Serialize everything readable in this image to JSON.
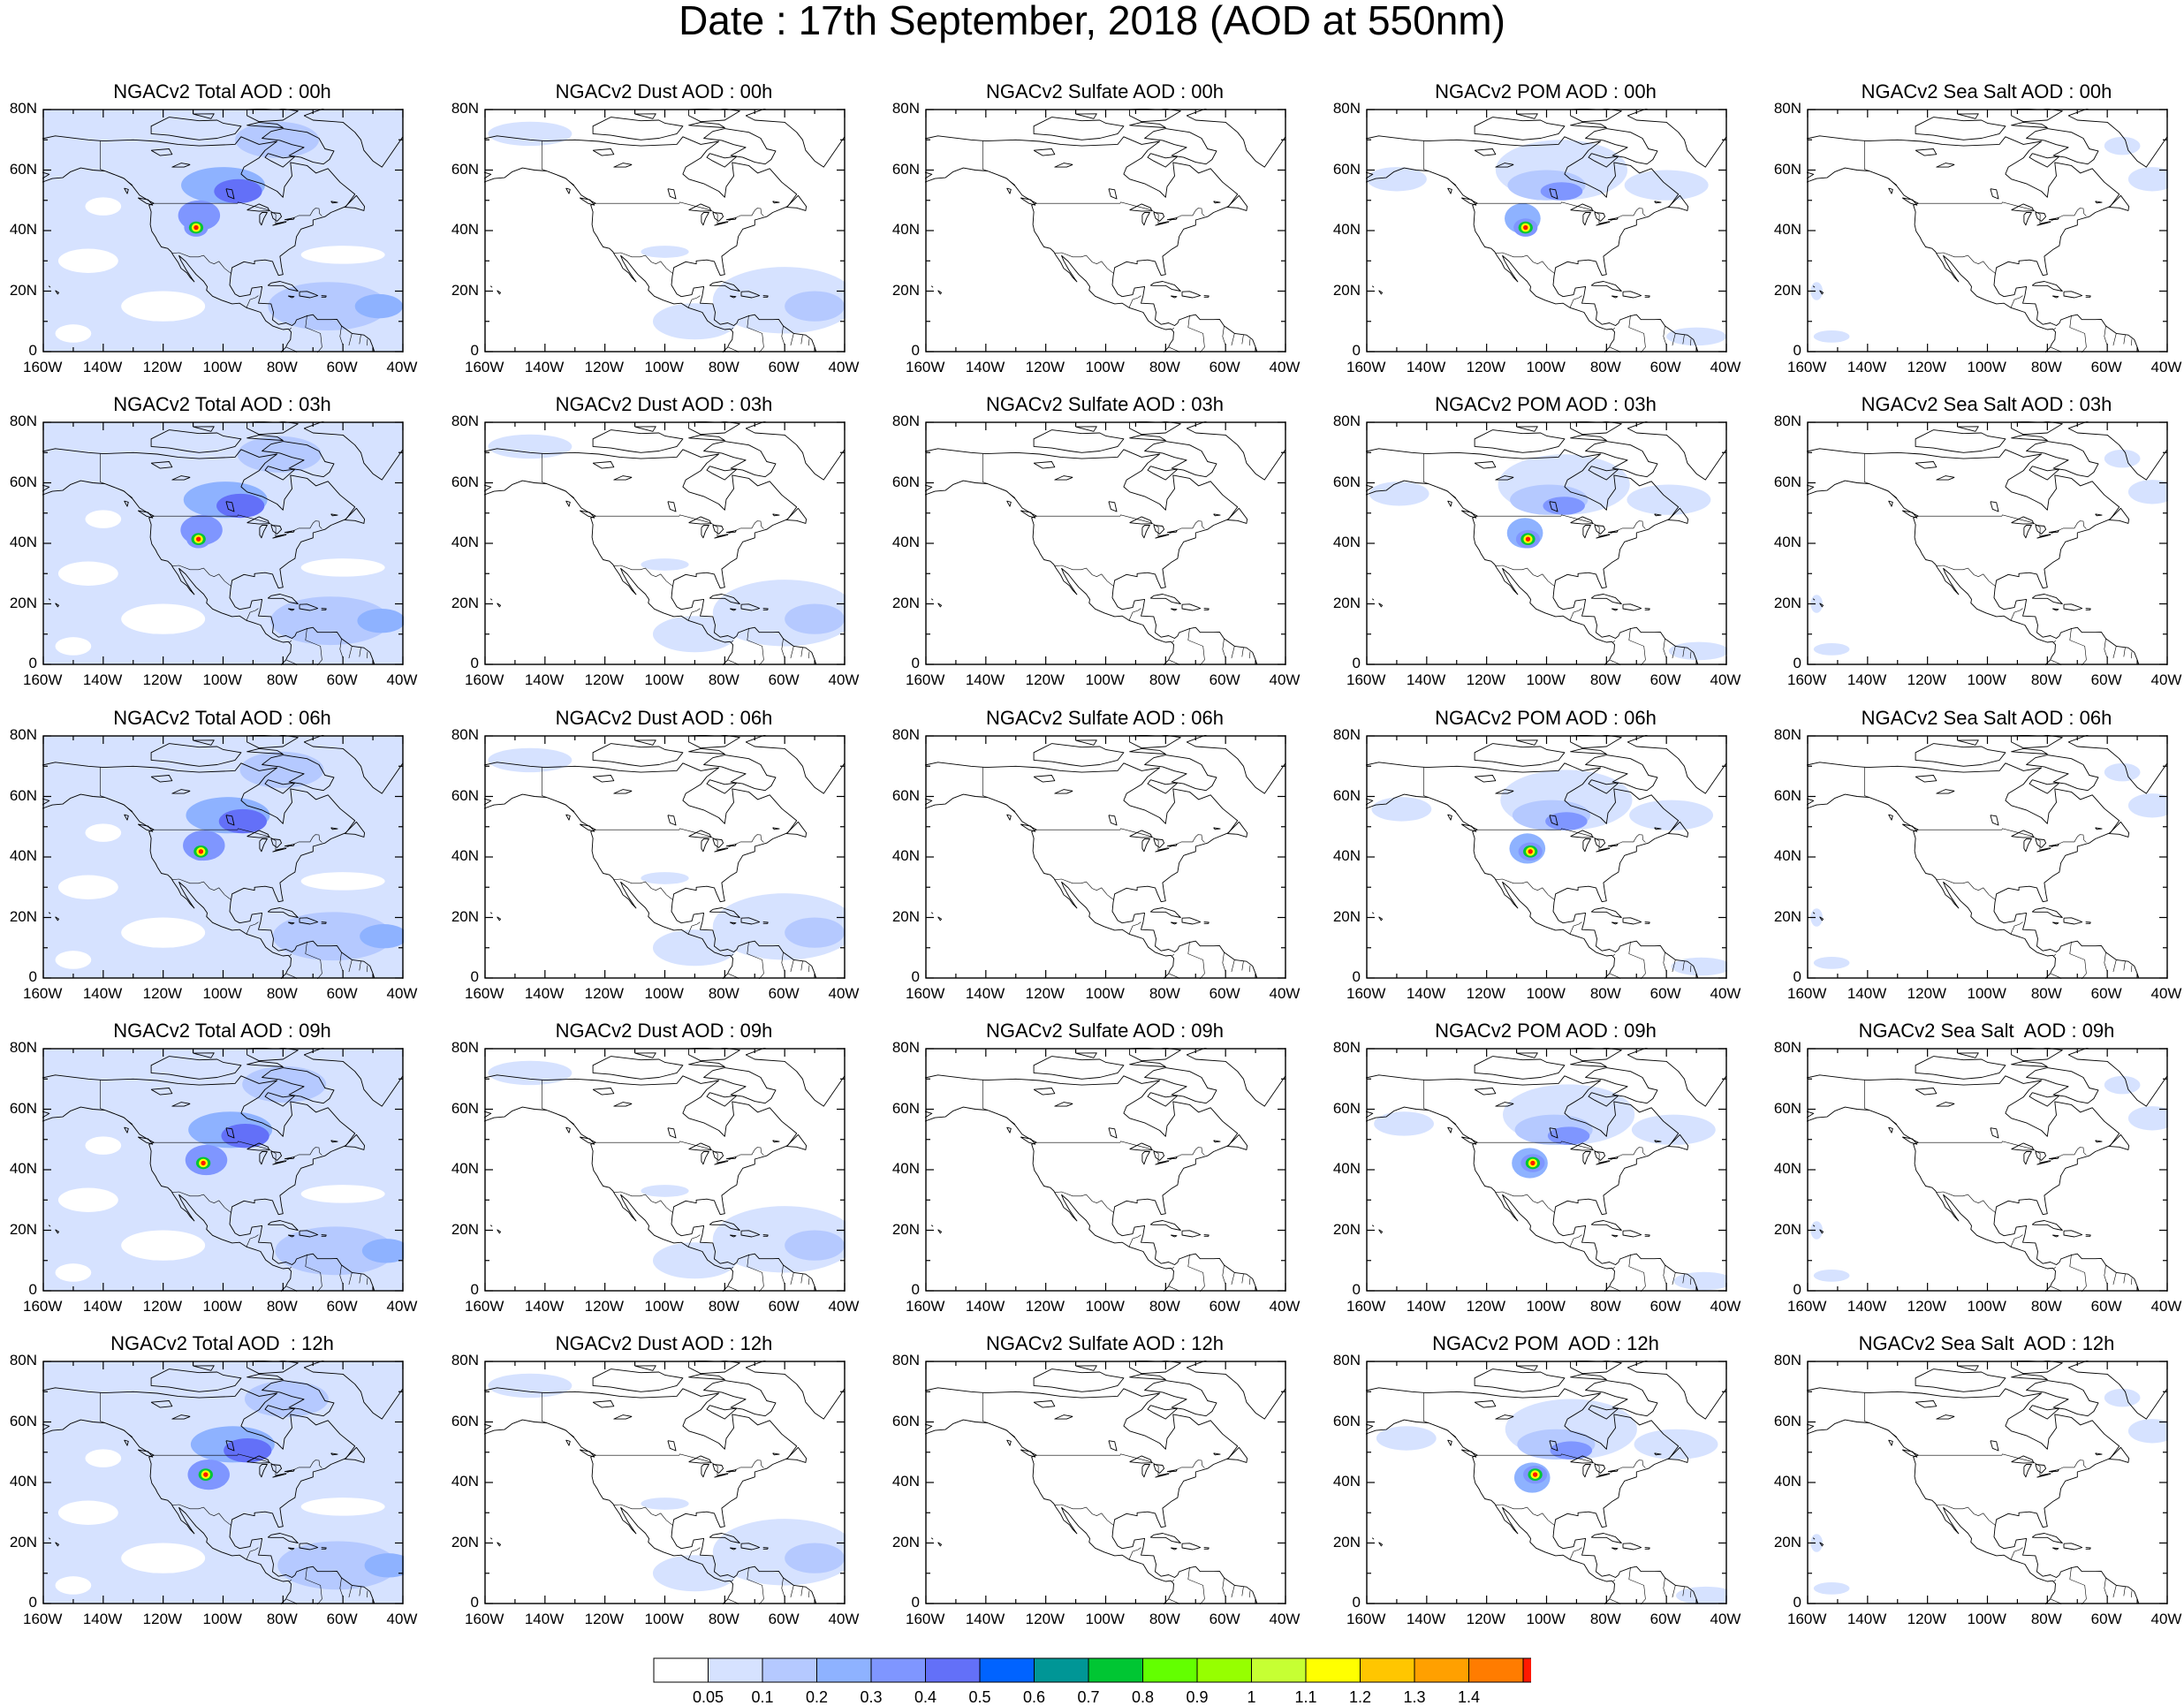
{
  "title": "Date : 17th September, 2018 (AOD at 550nm)",
  "columns": [
    "Total",
    "Dust",
    "Sulfate",
    "POM",
    "Sea Salt"
  ],
  "rows": [
    "00h",
    "03h",
    "06h",
    "09h",
    "12h"
  ],
  "panel_titles": [
    [
      "NGACv2 Total AOD : 00h",
      "NGACv2 Dust AOD : 00h",
      "NGACv2 Sulfate AOD : 00h",
      "NGACv2 POM AOD : 00h",
      "NGACv2 Sea Salt AOD : 00h"
    ],
    [
      "NGACv2 Total AOD : 03h",
      "NGACv2 Dust AOD : 03h",
      "NGACv2 Sulfate AOD : 03h",
      "NGACv2 POM AOD : 03h",
      "NGACv2 Sea Salt AOD : 03h"
    ],
    [
      "NGACv2 Total AOD : 06h",
      "NGACv2 Dust AOD : 06h",
      "NGACv2 Sulfate AOD : 06h",
      "NGACv2 POM AOD : 06h",
      "NGACv2 Sea Salt AOD : 06h"
    ],
    [
      "NGACv2 Total AOD : 09h",
      "NGACv2 Dust AOD : 09h",
      "NGACv2 Sulfate AOD : 09h",
      "NGACv2 POM AOD : 09h",
      "NGACv2 Sea Salt  AOD : 09h"
    ],
    [
      "NGACv2 Total AOD  : 12h",
      "NGACv2 Dust AOD : 12h",
      "NGACv2 Sulfate AOD : 12h",
      "NGACv2 POM  AOD : 12h",
      "NGACv2 Sea Salt  AOD : 12h"
    ]
  ],
  "map": {
    "lon_range": [
      -160,
      -40
    ],
    "lat_range": [
      0,
      80
    ],
    "x_ticks": [
      "160W",
      "140W",
      "120W",
      "100W",
      "80W",
      "60W",
      "40W"
    ],
    "y_ticks": [
      "0",
      "20N",
      "40N",
      "60N",
      "80N"
    ]
  },
  "colorbar": {
    "colors": [
      "#ffffff",
      "#d6e2ff",
      "#b5c9ff",
      "#8eb2ff",
      "#7f96ff",
      "#6370f8",
      "#0063ff",
      "#009696",
      "#00c633",
      "#63ff00",
      "#96ff00",
      "#c6ff33",
      "#ffff00",
      "#ffc600",
      "#ffa000",
      "#ff7c00",
      "#ff1900"
    ],
    "labels": [
      "0.05",
      "0.1",
      "0.2",
      "0.3",
      "0.4",
      "0.5",
      "0.6",
      "0.7",
      "0.8",
      "0.9",
      "1",
      "1.1",
      "1.2",
      "1.3",
      "1.4"
    ]
  },
  "plumes": {
    "Total": {
      "background": "#d6e2ff",
      "blobs": [
        {
          "lon": -100,
          "lat": 55,
          "rx": 14,
          "ry": 6,
          "color": "#8eb2ff"
        },
        {
          "lon": -95,
          "lat": 53,
          "rx": 8,
          "ry": 4,
          "color": "#6370f8"
        },
        {
          "lon": -108,
          "lat": 45,
          "rx": 7,
          "ry": 5,
          "color": "#7f96ff"
        },
        {
          "lon": -65,
          "lat": 15,
          "rx": 20,
          "ry": 8,
          "color": "#b5c9ff"
        },
        {
          "lon": -48,
          "lat": 15,
          "rx": 8,
          "ry": 4,
          "color": "#8eb2ff"
        },
        {
          "lon": -82,
          "lat": 70,
          "rx": 14,
          "ry": 6,
          "color": "#b5c9ff"
        }
      ],
      "hotspot": {
        "lon": -109,
        "lat": 41
      }
    },
    "Dust": {
      "background": null,
      "blobs": [
        {
          "lon": -60,
          "lat": 17,
          "rx": 24,
          "ry": 11,
          "color": "#d6e2ff"
        },
        {
          "lon": -50,
          "lat": 15,
          "rx": 10,
          "ry": 5,
          "color": "#b5c9ff"
        },
        {
          "lon": -90,
          "lat": 10,
          "rx": 14,
          "ry": 6,
          "color": "#d6e2ff"
        },
        {
          "lon": -145,
          "lat": 72,
          "rx": 14,
          "ry": 4,
          "color": "#d6e2ff"
        },
        {
          "lon": -100,
          "lat": 33,
          "rx": 8,
          "ry": 2,
          "color": "#d6e2ff"
        }
      ],
      "hotspot": null
    },
    "Sulfate": {
      "background": null,
      "blobs": [],
      "hotspot": null
    },
    "POM": {
      "background": null,
      "blobs": [
        {
          "lon": -95,
          "lat": 60,
          "rx": 22,
          "ry": 10,
          "color": "#d6e2ff"
        },
        {
          "lon": -100,
          "lat": 55,
          "rx": 13,
          "ry": 5,
          "color": "#b5c9ff"
        },
        {
          "lon": -95,
          "lat": 53,
          "rx": 7,
          "ry": 3,
          "color": "#7f96ff"
        },
        {
          "lon": -108,
          "lat": 44,
          "rx": 6,
          "ry": 5,
          "color": "#8eb2ff"
        },
        {
          "lon": -60,
          "lat": 55,
          "rx": 14,
          "ry": 5,
          "color": "#d6e2ff"
        },
        {
          "lon": -150,
          "lat": 57,
          "rx": 10,
          "ry": 4,
          "color": "#d6e2ff"
        },
        {
          "lon": -50,
          "lat": 5,
          "rx": 10,
          "ry": 3,
          "color": "#d6e2ff"
        }
      ],
      "hotspot": {
        "lon": -107,
        "lat": 41
      }
    },
    "Sea Salt": {
      "background": null,
      "blobs": [
        {
          "lon": -45,
          "lat": 57,
          "rx": 8,
          "ry": 4,
          "color": "#d6e2ff"
        },
        {
          "lon": -152,
          "lat": 5,
          "rx": 6,
          "ry": 2,
          "color": "#d6e2ff"
        },
        {
          "lon": -157,
          "lat": 20,
          "rx": 2,
          "ry": 3,
          "color": "#d6e2ff"
        },
        {
          "lon": -55,
          "lat": 68,
          "rx": 6,
          "ry": 3,
          "color": "#d6e2ff"
        }
      ],
      "hotspot": null
    }
  }
}
